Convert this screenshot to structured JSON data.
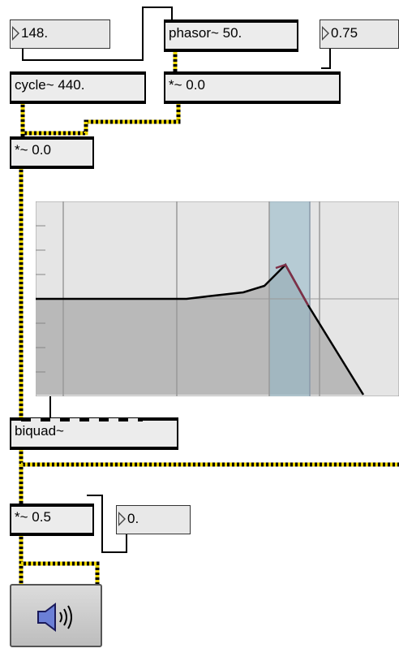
{
  "objects": {
    "number_freq": "148.",
    "phasor": "phasor~ 50.",
    "number_amp": "0.75",
    "cycle": "cycle~ 440.",
    "mult_mod": "*~ 0.0",
    "mult_sig": "*~ 0.0",
    "biquad": "biquad~",
    "mult_out": "*~ 0.5",
    "number_gain": "0."
  },
  "icons": {
    "dac": "speaker-icon"
  },
  "colors": {
    "patch_cord_signal": "#e8d200",
    "graph_bg": "#e5e5e5",
    "graph_fill": "#b9b9b9",
    "graph_band": "#a9c8d2"
  }
}
